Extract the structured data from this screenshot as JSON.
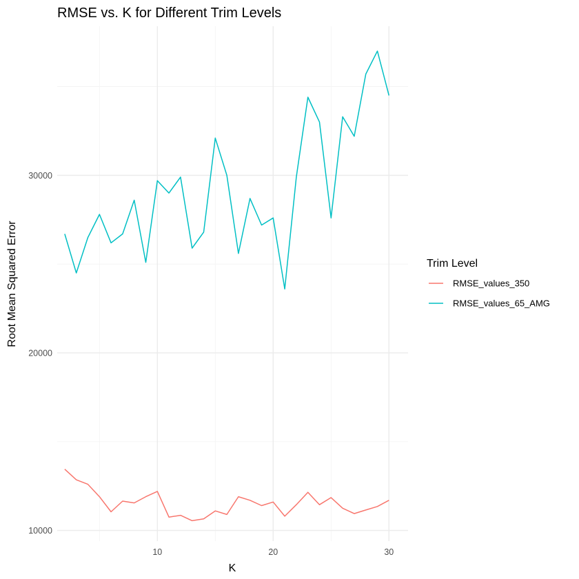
{
  "chart_data": {
    "type": "line",
    "title": "RMSE vs. K for Different Trim Levels",
    "xlabel": "K",
    "ylabel": "Root Mean Squared Error",
    "xlim": [
      1.35,
      31.65
    ],
    "ylim": [
      9400,
      38400
    ],
    "x_ticks": [
      10,
      20,
      30
    ],
    "y_ticks": [
      10000,
      20000,
      30000
    ],
    "x_tick_labels": [
      "10",
      "20",
      "30"
    ],
    "y_tick_labels": [
      "10000",
      "20000",
      "30000"
    ],
    "grid": true,
    "legend": {
      "title": "Trim Level",
      "position": "right"
    },
    "x": [
      2,
      3,
      4,
      5,
      6,
      7,
      8,
      9,
      10,
      11,
      12,
      13,
      14,
      15,
      16,
      17,
      18,
      19,
      20,
      21,
      22,
      23,
      24,
      25,
      26,
      27,
      28,
      29,
      30
    ],
    "series": [
      {
        "name": "RMSE_values_350",
        "color": "#F8766D",
        "values": [
          13450,
          12850,
          12600,
          11900,
          11050,
          11650,
          11550,
          11900,
          12200,
          10750,
          10850,
          10550,
          10650,
          11100,
          10900,
          11900,
          11700,
          11400,
          11600,
          10800,
          11450,
          12150,
          11450,
          11850,
          11250,
          10950,
          11150,
          11350,
          11700
        ]
      },
      {
        "name": "RMSE_values_65_AMG",
        "color": "#00BFC4",
        "values": [
          26700,
          24500,
          26500,
          27800,
          26200,
          26700,
          28600,
          25100,
          29700,
          29000,
          29900,
          25900,
          26800,
          32100,
          30000,
          25600,
          28700,
          27200,
          27600,
          23600,
          29900,
          34400,
          33000,
          27600,
          33300,
          32200,
          35700,
          37000,
          34500
        ]
      }
    ]
  }
}
